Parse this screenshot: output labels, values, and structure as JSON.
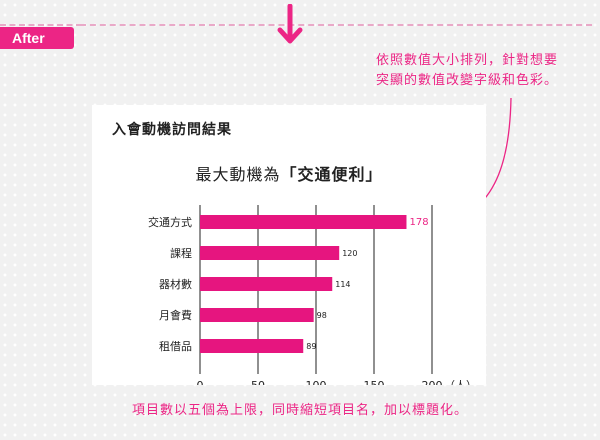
{
  "tag": {
    "label": "After"
  },
  "callout": {
    "line1": "依照數值大小排列，針對想要",
    "line2": "突顯的數值改變字級和色彩。"
  },
  "panel": {
    "title": "入會動機訪問結果"
  },
  "chart_title": {
    "prefix": "最大動機為",
    "open_quote": "「",
    "highlight": "交通便利",
    "close_quote": "」"
  },
  "caption": "項目數以五個為上限，同時縮短項目名，加以標題化。",
  "colors": {
    "accent": "#ec2585",
    "bar": "#e6157f",
    "grid": "#222222"
  },
  "chart_data": {
    "type": "bar",
    "orientation": "horizontal",
    "categories": [
      "交通方式",
      "課程",
      "器材數",
      "月會費",
      "租借品"
    ],
    "values": [
      178,
      120,
      114,
      98,
      89
    ],
    "highlight_index": 0,
    "xlim": [
      0,
      200
    ],
    "xticks": [
      0,
      50,
      100,
      150,
      200
    ],
    "xunit": "（人）",
    "grid": true
  }
}
